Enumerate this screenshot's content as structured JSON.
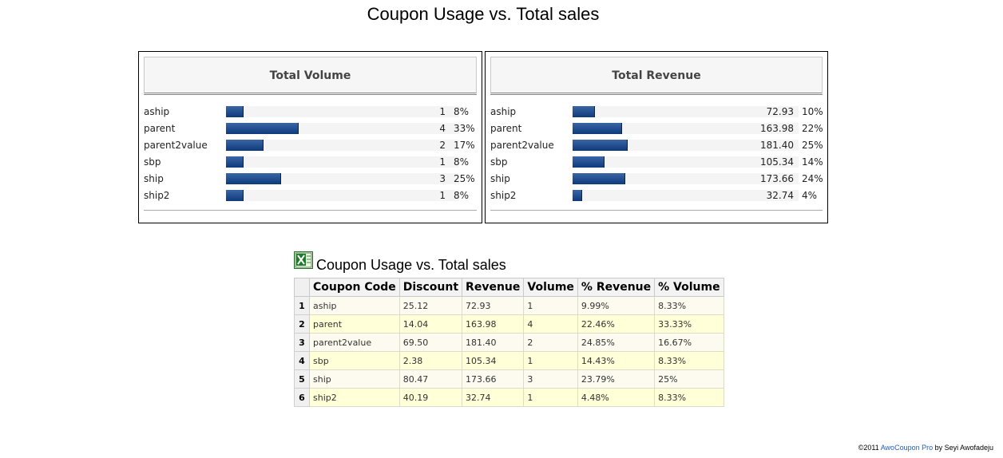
{
  "page": {
    "title": "Coupon Usage vs. Total sales"
  },
  "chart_data": [
    {
      "type": "bar",
      "title": "Total Volume",
      "categories": [
        "aship",
        "parent",
        "parent2value",
        "sbp",
        "ship",
        "ship2"
      ],
      "values": [
        1,
        4,
        2,
        1,
        3,
        1
      ],
      "value_labels": [
        "1",
        "4",
        "2",
        "1",
        "3",
        "1"
      ],
      "percent_labels": [
        "8%",
        "33%",
        "17%",
        "8%",
        "25%",
        "8%"
      ],
      "percent_values": [
        8,
        33,
        17,
        8,
        25,
        8
      ],
      "orientation": "horizontal"
    },
    {
      "type": "bar",
      "title": "Total Revenue",
      "categories": [
        "aship",
        "parent",
        "parent2value",
        "sbp",
        "ship",
        "ship2"
      ],
      "values": [
        72.93,
        163.98,
        181.4,
        105.34,
        173.66,
        32.74
      ],
      "value_labels": [
        "72.93",
        "163.98",
        "181.40",
        "105.34",
        "173.66",
        "32.74"
      ],
      "percent_labels": [
        "10%",
        "22%",
        "25%",
        "14%",
        "24%",
        "4%"
      ],
      "percent_values": [
        10,
        22,
        25,
        14,
        24,
        4
      ],
      "orientation": "horizontal"
    }
  ],
  "table": {
    "title": "Coupon Usage vs. Total sales",
    "icon": "excel-export-icon",
    "columns": [
      "Coupon Code",
      "Discount",
      "Revenue",
      "Volume",
      "% Revenue",
      "% Volume"
    ],
    "rows": [
      {
        "index": "1",
        "cells": [
          "aship",
          "25.12",
          "72.93",
          "1",
          "9.99%",
          "8.33%"
        ]
      },
      {
        "index": "2",
        "cells": [
          "parent",
          "14.04",
          "163.98",
          "4",
          "22.46%",
          "33.33%"
        ]
      },
      {
        "index": "3",
        "cells": [
          "parent2value",
          "69.50",
          "181.40",
          "2",
          "24.85%",
          "16.67%"
        ]
      },
      {
        "index": "4",
        "cells": [
          "sbp",
          "2.38",
          "105.34",
          "1",
          "14.43%",
          "8.33%"
        ]
      },
      {
        "index": "5",
        "cells": [
          "ship",
          "80.47",
          "173.66",
          "3",
          "23.79%",
          "25%"
        ]
      },
      {
        "index": "6",
        "cells": [
          "ship2",
          "40.19",
          "32.74",
          "1",
          "4.48%",
          "8.33%"
        ]
      }
    ]
  },
  "footer": {
    "prefix": "©2011 ",
    "link": "AwoCoupon Pro",
    "suffix": " by Seyi Awofadeju"
  },
  "colors": {
    "bar": "#0d3a7c",
    "link": "#1f5fbf"
  }
}
